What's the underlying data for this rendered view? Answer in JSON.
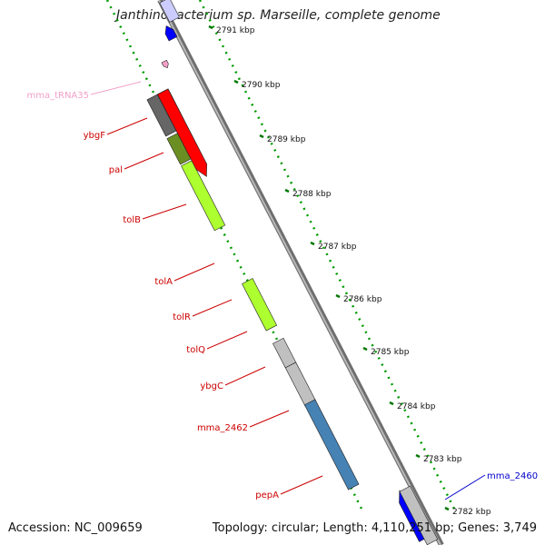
{
  "title": "Janthinobacterium sp. Marseille, complete genome",
  "footer": {
    "accession": "Accession: NC_009659",
    "summary": "Topology: circular; Length: 4,110,251 bp; Genes: 3,749"
  },
  "scale": {
    "ticks": [
      "2791 kbp",
      "2790 kbp",
      "2789 kbp",
      "2788 kbp",
      "2787 kbp",
      "2786 kbp",
      "2785 kbp",
      "2784 kbp",
      "2783 kbp",
      "2782 kbp"
    ]
  },
  "genes": [
    {
      "name": "mma_tRNA35",
      "color": "#f2a0c8"
    },
    {
      "name": "ybgF",
      "color": "#cc0000"
    },
    {
      "name": "pal",
      "color": "#cc0000"
    },
    {
      "name": "tolB",
      "color": "#cc0000"
    },
    {
      "name": "tolA",
      "color": "#cc0000"
    },
    {
      "name": "tolR",
      "color": "#cc0000"
    },
    {
      "name": "tolQ",
      "color": "#cc0000"
    },
    {
      "name": "ybgC",
      "color": "#cc0000"
    },
    {
      "name": "mma_2462",
      "color": "#cc0000"
    },
    {
      "name": "pepA",
      "color": "#cc0000"
    },
    {
      "name": "mma_2460",
      "color": "#0000cc"
    }
  ],
  "colors": {
    "forward_strand": "#ff0000",
    "reverse_strand": "#0000ff",
    "backbone": "#888888",
    "tick_dots": "#009900",
    "category_gray": "#666666",
    "category_olive": "#6b8e23",
    "category_lime": "#adff2f",
    "category_light_gray": "#c0c0c0",
    "category_steel_blue": "#4682b4"
  }
}
